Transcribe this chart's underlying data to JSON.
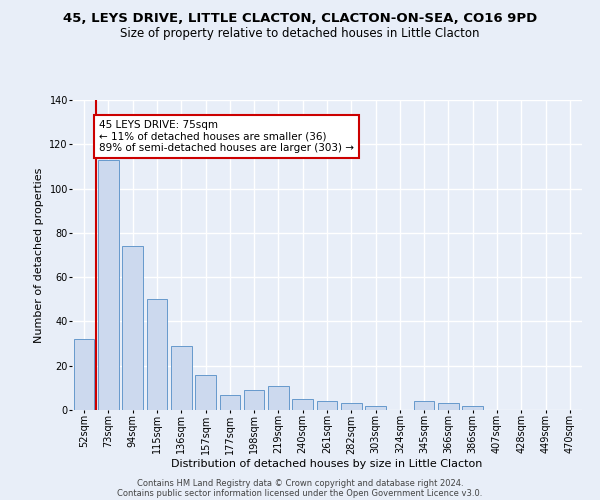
{
  "title": "45, LEYS DRIVE, LITTLE CLACTON, CLACTON-ON-SEA, CO16 9PD",
  "subtitle": "Size of property relative to detached houses in Little Clacton",
  "xlabel": "Distribution of detached houses by size in Little Clacton",
  "ylabel": "Number of detached properties",
  "categories": [
    "52sqm",
    "73sqm",
    "94sqm",
    "115sqm",
    "136sqm",
    "157sqm",
    "177sqm",
    "198sqm",
    "219sqm",
    "240sqm",
    "261sqm",
    "282sqm",
    "303sqm",
    "324sqm",
    "345sqm",
    "366sqm",
    "386sqm",
    "407sqm",
    "428sqm",
    "449sqm",
    "470sqm"
  ],
  "values": [
    32,
    113,
    74,
    50,
    29,
    16,
    7,
    9,
    11,
    5,
    4,
    3,
    2,
    0,
    4,
    3,
    2,
    0,
    0,
    0,
    0
  ],
  "bar_color": "#ccd9ee",
  "bar_edge_color": "#6699cc",
  "vline_color": "#cc0000",
  "annotation_box_color": "#cc0000",
  "annotation_line1": "45 LEYS DRIVE: 75sqm",
  "annotation_line2": "← 11% of detached houses are smaller (36)",
  "annotation_line3": "89% of semi-detached houses are larger (303) →",
  "ylim": [
    0,
    140
  ],
  "yticks": [
    0,
    20,
    40,
    60,
    80,
    100,
    120,
    140
  ],
  "footer1": "Contains HM Land Registry data © Crown copyright and database right 2024.",
  "footer2": "Contains public sector information licensed under the Open Government Licence v3.0.",
  "background_color": "#e8eef8",
  "grid_color": "#ffffff",
  "title_fontsize": 9.5,
  "subtitle_fontsize": 8.5,
  "ylabel_fontsize": 8,
  "xlabel_fontsize": 8,
  "tick_fontsize": 7,
  "annot_fontsize": 7.5,
  "footer_fontsize": 6
}
